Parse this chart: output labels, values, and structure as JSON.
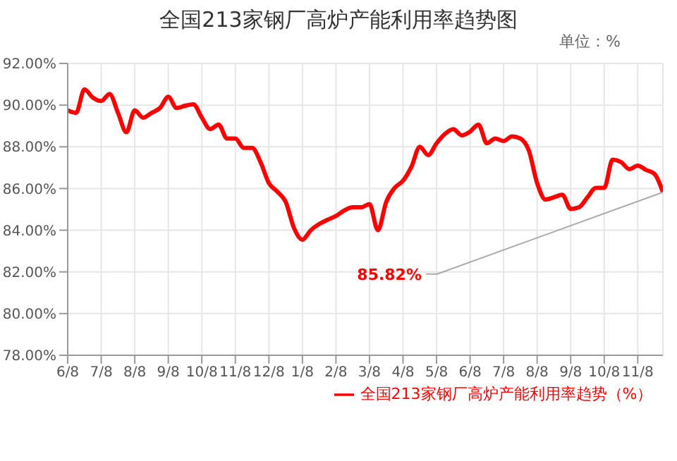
{
  "chart_data": {
    "type": "line",
    "title": "全国213家钢厂高炉产能利用率趋势图",
    "categories": [
      "6/8",
      null,
      null,
      null,
      "7/8",
      null,
      null,
      null,
      "8/8",
      null,
      null,
      null,
      "9/8",
      null,
      null,
      null,
      "10/8",
      null,
      null,
      null,
      "11/8",
      null,
      null,
      null,
      "12/8",
      null,
      null,
      null,
      "1/8",
      null,
      null,
      null,
      "2/8",
      null,
      null,
      null,
      "3/8",
      null,
      null,
      null,
      "4/8",
      null,
      null,
      null,
      "5/8",
      null,
      null,
      null,
      "6/8",
      null,
      null,
      null,
      "7/8",
      null,
      null,
      null,
      "8/8",
      null,
      null,
      null,
      "9/8",
      null,
      null,
      null,
      "10/8",
      null,
      null,
      null,
      "11/8",
      null,
      null,
      null
    ],
    "series": [
      {
        "name": "全国213家钢厂高炉产能利用率趋势（%）",
        "color": "#ff0000",
        "values": [
          89.75,
          89.63,
          90.76,
          90.36,
          90.2,
          90.54,
          89.63,
          88.7,
          89.75,
          89.4,
          89.63,
          89.86,
          90.4,
          89.86,
          89.97,
          90.04,
          89.4,
          88.85,
          89.07,
          88.4,
          88.4,
          87.95,
          87.95,
          87.27,
          86.26,
          85.85,
          85.36,
          84.1,
          83.55,
          84.0,
          84.3,
          84.5,
          84.68,
          84.95,
          85.1,
          85.1,
          85.25,
          84.0,
          85.36,
          86.03,
          86.37,
          87.04,
          88.0,
          87.6,
          88.17,
          88.62,
          88.85,
          88.55,
          88.73,
          89.07,
          88.17,
          88.4,
          88.28,
          88.5,
          88.4,
          87.83,
          86.26,
          85.47,
          85.58,
          85.7,
          85.02,
          85.1,
          85.58,
          86.03,
          86.03,
          87.38,
          87.27,
          86.93,
          87.1,
          86.89,
          86.7,
          85.82
        ]
      }
    ],
    "ylim": [
      78,
      92
    ],
    "yticks": [
      {
        "value": 78,
        "label": "78.00%"
      },
      {
        "value": 80,
        "label": "80.00%"
      },
      {
        "value": 82,
        "label": "82.00%"
      },
      {
        "value": 84,
        "label": "84.00%"
      },
      {
        "value": 86,
        "label": "86.00%"
      },
      {
        "value": 88,
        "label": "88.00%"
      },
      {
        "value": 90,
        "label": "90.00%"
      },
      {
        "value": 92,
        "label": "92.00%"
      }
    ],
    "annotations": [
      "单位：%",
      "85.82%"
    ],
    "grid": true,
    "legend": "bottom",
    "marker": "none",
    "line_style": "solid"
  }
}
